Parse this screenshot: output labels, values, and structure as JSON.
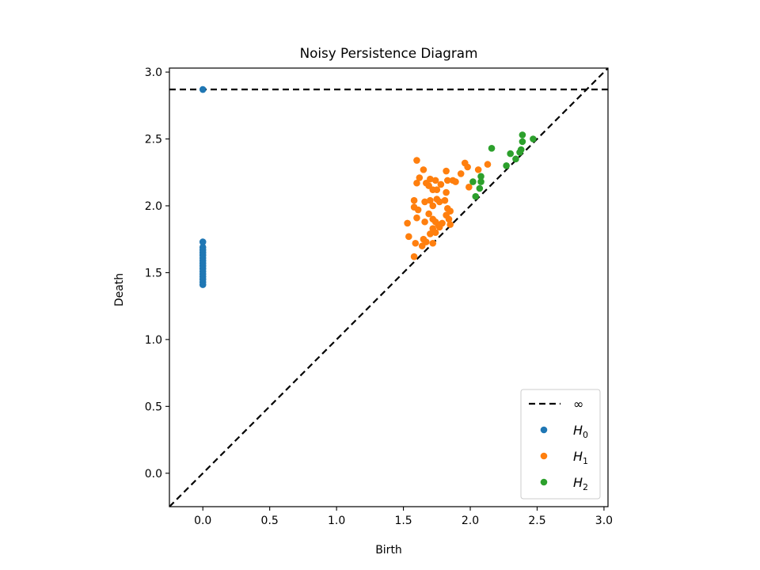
{
  "chart_data": {
    "type": "scatter",
    "title": "Noisy Persistence Diagram",
    "xlabel": "Birth",
    "ylabel": "Death",
    "xlim": [
      -0.25,
      3.03
    ],
    "ylim": [
      -0.25,
      3.03
    ],
    "xticks": [
      0.0,
      0.5,
      1.0,
      1.5,
      2.0,
      2.5,
      3.0
    ],
    "yticks": [
      0.0,
      0.5,
      1.0,
      1.5,
      2.0,
      2.5,
      3.0
    ],
    "xtick_labels": [
      "0.0",
      "0.5",
      "1.0",
      "1.5",
      "2.0",
      "2.5",
      "3.0"
    ],
    "ytick_labels": [
      "0.0",
      "0.5",
      "1.0",
      "1.5",
      "2.0",
      "2.5",
      "3.0"
    ],
    "infinity_line": {
      "y": 2.87,
      "label": "∞",
      "color": "#000000"
    },
    "diagonal": {
      "from": -0.25,
      "to": 3.03
    },
    "legend": {
      "placement": "lower-right",
      "entries": [
        {
          "label": "∞",
          "kind": "line",
          "color": "#000000"
        },
        {
          "label": "H",
          "sub": "0",
          "kind": "marker",
          "color": "#1f77b4"
        },
        {
          "label": "H",
          "sub": "1",
          "kind": "marker",
          "color": "#ff7f0e"
        },
        {
          "label": "H",
          "sub": "2",
          "kind": "marker",
          "color": "#2ca02c"
        }
      ]
    },
    "series": [
      {
        "name": "H0",
        "color": "#1f77b4",
        "points": [
          [
            0.0,
            2.87
          ],
          [
            0.0,
            1.73
          ],
          [
            0.0,
            1.69
          ],
          [
            0.0,
            1.67
          ],
          [
            0.0,
            1.65
          ],
          [
            0.0,
            1.63
          ],
          [
            0.0,
            1.61
          ],
          [
            0.0,
            1.59
          ],
          [
            0.0,
            1.57
          ],
          [
            0.0,
            1.55
          ],
          [
            0.0,
            1.53
          ],
          [
            0.0,
            1.51
          ],
          [
            0.0,
            1.49
          ],
          [
            0.0,
            1.47
          ],
          [
            0.0,
            1.45
          ],
          [
            0.0,
            1.43
          ],
          [
            0.0,
            1.41
          ]
        ]
      },
      {
        "name": "H1",
        "color": "#ff7f0e",
        "points": [
          [
            1.6,
            2.34
          ],
          [
            1.65,
            2.27
          ],
          [
            1.62,
            2.21
          ],
          [
            1.6,
            2.17
          ],
          [
            1.67,
            2.17
          ],
          [
            1.69,
            2.15
          ],
          [
            1.7,
            2.2
          ],
          [
            1.72,
            2.12
          ],
          [
            1.74,
            2.19
          ],
          [
            1.75,
            2.12
          ],
          [
            1.78,
            2.16
          ],
          [
            1.82,
            2.26
          ],
          [
            1.83,
            2.19
          ],
          [
            1.82,
            2.1
          ],
          [
            1.87,
            2.19
          ],
          [
            1.89,
            2.18
          ],
          [
            1.93,
            2.24
          ],
          [
            1.96,
            2.32
          ],
          [
            1.98,
            2.29
          ],
          [
            1.99,
            2.14
          ],
          [
            2.06,
            2.27
          ],
          [
            2.13,
            2.31
          ],
          [
            1.58,
            2.04
          ],
          [
            1.58,
            1.99
          ],
          [
            1.61,
            1.97
          ],
          [
            1.6,
            1.91
          ],
          [
            1.66,
            2.03
          ],
          [
            1.7,
            2.04
          ],
          [
            1.72,
            2.0
          ],
          [
            1.75,
            2.05
          ],
          [
            1.77,
            2.03
          ],
          [
            1.81,
            2.04
          ],
          [
            1.83,
            1.98
          ],
          [
            1.85,
            1.96
          ],
          [
            1.69,
            1.94
          ],
          [
            1.66,
            1.88
          ],
          [
            1.72,
            1.9
          ],
          [
            1.74,
            1.88
          ],
          [
            1.76,
            1.86
          ],
          [
            1.79,
            1.87
          ],
          [
            1.82,
            1.93
          ],
          [
            1.84,
            1.9
          ],
          [
            1.85,
            1.86
          ],
          [
            1.53,
            1.87
          ],
          [
            1.54,
            1.77
          ],
          [
            1.59,
            1.72
          ],
          [
            1.65,
            1.75
          ],
          [
            1.67,
            1.73
          ],
          [
            1.7,
            1.79
          ],
          [
            1.72,
            1.83
          ],
          [
            1.74,
            1.8
          ],
          [
            1.77,
            1.84
          ],
          [
            1.64,
            1.7
          ],
          [
            1.72,
            1.72
          ],
          [
            1.58,
            1.62
          ]
        ]
      },
      {
        "name": "H2",
        "color": "#2ca02c",
        "points": [
          [
            2.39,
            2.53
          ],
          [
            2.39,
            2.48
          ],
          [
            2.47,
            2.5
          ],
          [
            2.16,
            2.43
          ],
          [
            2.38,
            2.42
          ],
          [
            2.37,
            2.4
          ],
          [
            2.3,
            2.39
          ],
          [
            2.34,
            2.35
          ],
          [
            2.27,
            2.3
          ],
          [
            2.08,
            2.22
          ],
          [
            2.02,
            2.18
          ],
          [
            2.08,
            2.18
          ],
          [
            2.07,
            2.13
          ],
          [
            2.04,
            2.07
          ]
        ]
      }
    ]
  }
}
